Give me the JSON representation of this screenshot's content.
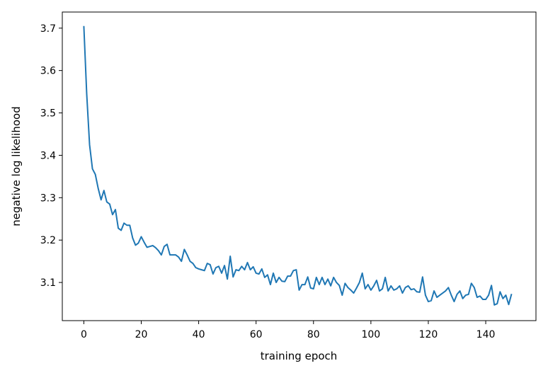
{
  "chart_data": {
    "type": "line",
    "title": "",
    "xlabel": "training epoch",
    "ylabel": "negative log likelihood",
    "xlim": [
      -7.5,
      157.5
    ],
    "ylim": [
      3.01,
      3.738
    ],
    "xticks": [
      0,
      20,
      40,
      60,
      80,
      100,
      120,
      140
    ],
    "yticks": [
      3.1,
      3.2,
      3.3,
      3.4,
      3.5,
      3.6,
      3.7
    ],
    "grid": false,
    "line_color": "#1f77b4",
    "series": [
      {
        "values": [
          3.705,
          3.545,
          3.425,
          3.368,
          3.355,
          3.322,
          3.295,
          3.317,
          3.29,
          3.285,
          3.26,
          3.272,
          3.228,
          3.223,
          3.24,
          3.235,
          3.235,
          3.205,
          3.188,
          3.193,
          3.208,
          3.195,
          3.183,
          3.185,
          3.187,
          3.182,
          3.175,
          3.165,
          3.185,
          3.19,
          3.165,
          3.165,
          3.165,
          3.16,
          3.15,
          3.178,
          3.165,
          3.15,
          3.145,
          3.135,
          3.132,
          3.13,
          3.128,
          3.145,
          3.142,
          3.12,
          3.135,
          3.138,
          3.122,
          3.14,
          3.108,
          3.162,
          3.113,
          3.13,
          3.128,
          3.138,
          3.13,
          3.147,
          3.13,
          3.137,
          3.122,
          3.12,
          3.132,
          3.112,
          3.118,
          3.095,
          3.122,
          3.1,
          3.112,
          3.103,
          3.102,
          3.115,
          3.115,
          3.128,
          3.13,
          3.082,
          3.095,
          3.095,
          3.113,
          3.087,
          3.085,
          3.112,
          3.095,
          3.112,
          3.095,
          3.108,
          3.092,
          3.112,
          3.1,
          3.093,
          3.07,
          3.098,
          3.088,
          3.082,
          3.075,
          3.087,
          3.1,
          3.122,
          3.085,
          3.095,
          3.082,
          3.092,
          3.105,
          3.08,
          3.085,
          3.112,
          3.08,
          3.092,
          3.082,
          3.085,
          3.092,
          3.075,
          3.088,
          3.092,
          3.083,
          3.085,
          3.078,
          3.077,
          3.113,
          3.07,
          3.055,
          3.057,
          3.08,
          3.065,
          3.07,
          3.075,
          3.08,
          3.088,
          3.07,
          3.055,
          3.072,
          3.08,
          3.062,
          3.07,
          3.072,
          3.098,
          3.088,
          3.065,
          3.068,
          3.06,
          3.06,
          3.07,
          3.093,
          3.047,
          3.05,
          3.078,
          3.062,
          3.07,
          3.048,
          3.073
        ]
      }
    ]
  }
}
